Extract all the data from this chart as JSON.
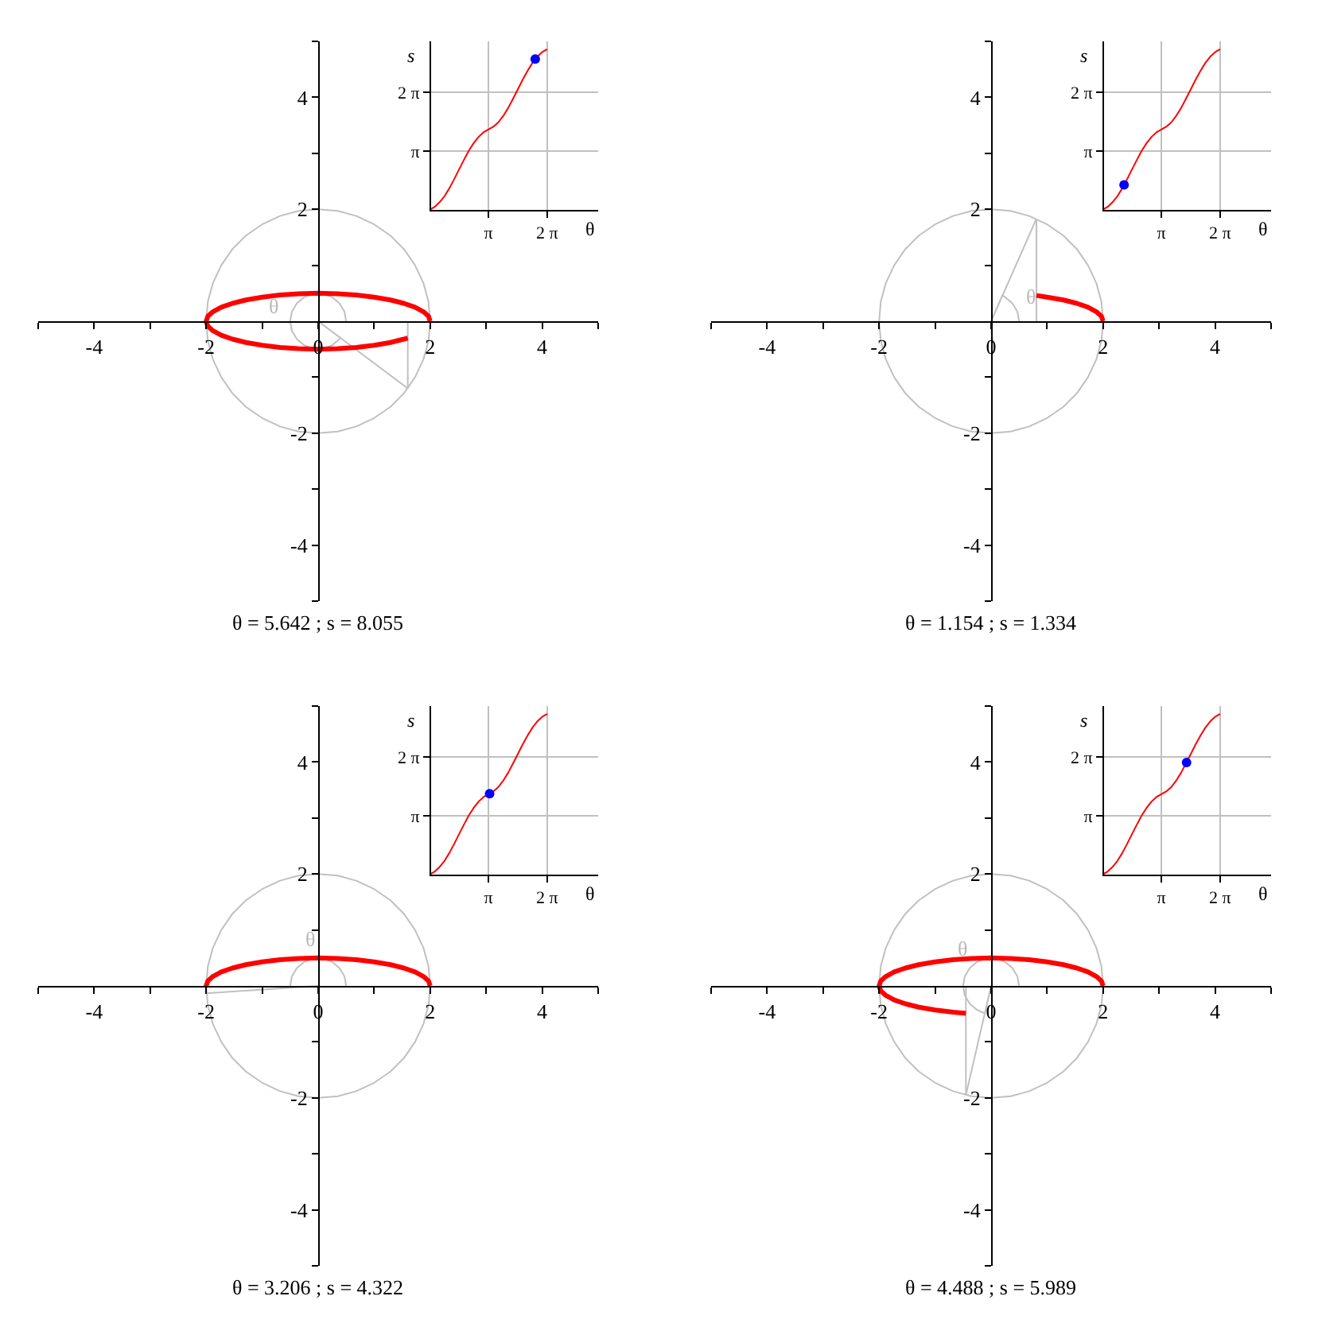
{
  "chart_data": [
    {
      "type": "line",
      "series": [
        {
          "color": "#c0c0c0",
          "x": [
            2,
            1.97,
            1.88,
            1.73,
            1.53,
            1.29,
            1,
            0.68,
            0.35,
            0,
            -0.35,
            -0.68,
            -1,
            -1.29,
            -1.53,
            -1.73,
            -1.88,
            -1.97,
            -2,
            -1.97,
            -1.88,
            -1.73,
            -1.53,
            -1.29,
            -1,
            -0.68,
            -0.35,
            0,
            0.35,
            0.68,
            1,
            1.29,
            1.53,
            1.73,
            1.88,
            1.97,
            2
          ],
          "values": [
            0,
            0.35,
            0.68,
            1,
            1.29,
            1.53,
            1.73,
            1.88,
            1.97,
            2,
            1.97,
            1.88,
            1.73,
            1.53,
            1.29,
            1,
            0.68,
            0.35,
            0,
            -0.35,
            -0.68,
            -1,
            -1.29,
            -1.53,
            -1.73,
            -1.88,
            -1.97,
            -2,
            -1.97,
            -1.88,
            -1.73,
            -1.53,
            -1.29,
            -1,
            -0.68,
            -0.35,
            -0.03
          ]
        },
        {
          "color": "#c0c0c0",
          "x": [
            0.5,
            0.47,
            0.38,
            0.25,
            0.09,
            -0.09,
            -0.25,
            -0.38,
            -0.47,
            -0.5,
            -0.47,
            -0.38,
            -0.25,
            -0.09,
            0.09,
            0.25,
            0.38,
            0.4,
            0,
            1.6
          ],
          "values": [
            0,
            0.17,
            0.32,
            0.43,
            0.49,
            0.49,
            0.43,
            0.32,
            0.17,
            0,
            -0.17,
            -0.32,
            -0.43,
            -0.49,
            -0.49,
            -0.43,
            -0.32,
            -0.3,
            0,
            -1.2
          ]
        },
        {
          "color": "#c0c0c0",
          "x": [
            1.6,
            1.6
          ],
          "values": [
            -1.2,
            0
          ]
        },
        {
          "color": "#ff0000",
          "x": [
            2,
            1.97,
            1.88,
            1.73,
            1.53,
            1.29,
            1,
            0.68,
            0.35,
            0,
            -0.35,
            -0.68,
            -1,
            -1.29,
            -1.53,
            -1.73,
            -1.88,
            -1.97,
            -2,
            -1.97,
            -1.88,
            -1.73,
            -1.53,
            -1.29,
            -1,
            -0.68,
            -0.35,
            0,
            0.35,
            0.68,
            1,
            1.29,
            1.53,
            1.6
          ],
          "values": [
            0,
            0.09,
            0.17,
            0.25,
            0.32,
            0.38,
            0.43,
            0.47,
            0.49,
            0.5,
            0.49,
            0.47,
            0.43,
            0.38,
            0.32,
            0.25,
            0.17,
            0.09,
            0,
            -0.09,
            -0.17,
            -0.25,
            -0.32,
            -0.38,
            -0.43,
            -0.47,
            -0.49,
            -0.5,
            -0.49,
            -0.47,
            -0.43,
            -0.38,
            -0.32,
            -0.3
          ]
        }
      ],
      "xlim": [
        -5,
        5
      ],
      "ylim": [
        -5,
        5
      ],
      "xticks": [
        {
          "value": -5,
          "label": null
        },
        -4,
        {
          "value": -3,
          "label": null
        },
        -2,
        {
          "value": -1,
          "label": null
        },
        0,
        {
          "value": 1,
          "label": null
        },
        2,
        {
          "value": 3,
          "label": null
        },
        4,
        {
          "value": 5,
          "label": null
        }
      ],
      "yticks": [
        {
          "value": -5,
          "label": null
        },
        -4,
        {
          "value": -3,
          "label": null
        },
        -2,
        {
          "value": -1,
          "label": null
        },
        {
          "value": 1,
          "label": null
        },
        2,
        {
          "value": 3,
          "label": null
        },
        4,
        {
          "value": 5,
          "label": null
        }
      ],
      "annotations": [
        {
          "text": "θ",
          "x": -0.48,
          "y": 0.16
        },
        "θ = 5.642 ; s = 8.055"
      ]
    },
    {
      "type": "line",
      "series": [
        {
          "color": "#ff0000",
          "x": [
            0,
            0.26,
            0.52,
            0.79,
            1.05,
            1.31,
            1.57,
            1.83,
            2.09,
            2.36,
            2.62,
            2.88,
            3.14,
            3.4,
            3.67,
            3.93,
            4.19,
            4.45,
            4.71,
            4.97,
            5.24,
            5.5,
            5.76,
            6.02,
            6.28
          ],
          "values": [
            0,
            0.15,
            0.39,
            0.72,
            1.14,
            1.63,
            2.15,
            2.66,
            3.15,
            3.57,
            3.9,
            4.14,
            4.29,
            4.44,
            4.67,
            5.01,
            5.43,
            5.92,
            6.43,
            6.95,
            7.44,
            7.86,
            8.19,
            8.43,
            8.58
          ]
        },
        {
          "type": "scatter",
          "color": "#0000ff",
          "marker": "circle",
          "x": [
            5.642
          ],
          "values": [
            8.055
          ]
        }
      ],
      "xlim": [
        0,
        9
      ],
      "ylim": [
        0,
        9
      ],
      "xticks": [
        {
          "value": 3.14,
          "label": "π"
        },
        {
          "value": 6.28,
          "label": "2 π"
        }
      ],
      "yticks": [
        {
          "value": 3.14,
          "label": "π"
        },
        {
          "value": 6.28,
          "label": "2 π"
        }
      ],
      "xlabel": "θ",
      "ylabel": "s",
      "grid": true
    },
    {
      "type": "line",
      "series": [
        {
          "color": "#c0c0c0",
          "x": [
            2,
            1.97,
            1.88,
            1.73,
            1.53,
            1.29,
            1,
            0.68,
            0.35,
            0,
            -0.35,
            -0.68,
            -1,
            -1.29,
            -1.53,
            -1.73,
            -1.88,
            -1.97,
            -2,
            -1.97,
            -1.88,
            -1.73,
            -1.53,
            -1.29,
            -1,
            -0.68,
            -0.35,
            0,
            0.35,
            0.68,
            1,
            1.29,
            1.53,
            1.73,
            1.88,
            1.97,
            2
          ],
          "values": [
            0,
            0.35,
            0.68,
            1,
            1.29,
            1.53,
            1.73,
            1.88,
            1.97,
            2,
            1.97,
            1.88,
            1.73,
            1.53,
            1.29,
            1,
            0.68,
            0.35,
            0,
            -0.35,
            -0.68,
            -1,
            -1.29,
            -1.53,
            -1.73,
            -1.88,
            -1.97,
            -2,
            -1.97,
            -1.88,
            -1.73,
            -1.53,
            -1.29,
            -1,
            -0.68,
            -0.35,
            -0.03
          ]
        },
        {
          "color": "#c0c0c0",
          "x": [
            0.5,
            0.47,
            0.38,
            0.25,
            0.2,
            0,
            0.81
          ],
          "values": [
            0,
            0.17,
            0.32,
            0.43,
            0.46,
            0,
            1.83
          ]
        },
        {
          "color": "#c0c0c0",
          "x": [
            0.81,
            0.81
          ],
          "values": [
            1.83,
            0
          ]
        },
        {
          "color": "#ff0000",
          "x": [
            2,
            1.97,
            1.88,
            1.73,
            1.53,
            1.29,
            1,
            0.81
          ],
          "values": [
            0,
            0.09,
            0.17,
            0.25,
            0.32,
            0.38,
            0.43,
            0.46
          ]
        }
      ],
      "xlim": [
        -5,
        5
      ],
      "ylim": [
        -5,
        5
      ],
      "xticks": [
        {
          "value": -5,
          "label": null
        },
        -4,
        {
          "value": -3,
          "label": null
        },
        -2,
        {
          "value": -1,
          "label": null
        },
        0,
        {
          "value": 1,
          "label": null
        },
        2,
        {
          "value": 3,
          "label": null
        },
        4,
        {
          "value": 5,
          "label": null
        }
      ],
      "yticks": [
        {
          "value": -5,
          "label": null
        },
        -4,
        {
          "value": -3,
          "label": null
        },
        -2,
        {
          "value": -1,
          "label": null
        },
        {
          "value": 1,
          "label": null
        },
        2,
        {
          "value": 3,
          "label": null
        },
        4,
        {
          "value": 5,
          "label": null
        }
      ],
      "annotations": [
        {
          "text": "θ",
          "x": 0.42,
          "y": 0.27
        },
        "θ = 1.154 ; s = 1.334"
      ]
    },
    {
      "type": "line",
      "series": [
        {
          "color": "#ff0000",
          "x": [
            0,
            0.26,
            0.52,
            0.79,
            1.05,
            1.31,
            1.57,
            1.83,
            2.09,
            2.36,
            2.62,
            2.88,
            3.14,
            3.4,
            3.67,
            3.93,
            4.19,
            4.45,
            4.71,
            4.97,
            5.24,
            5.5,
            5.76,
            6.02,
            6.28
          ],
          "values": [
            0,
            0.15,
            0.39,
            0.72,
            1.14,
            1.63,
            2.15,
            2.66,
            3.15,
            3.57,
            3.9,
            4.14,
            4.29,
            4.44,
            4.67,
            5.01,
            5.43,
            5.92,
            6.43,
            6.95,
            7.44,
            7.86,
            8.19,
            8.43,
            8.58
          ]
        },
        {
          "type": "scatter",
          "color": "#0000ff",
          "marker": "circle",
          "x": [
            1.154
          ],
          "values": [
            1.334
          ]
        }
      ],
      "xlim": [
        0,
        9
      ],
      "ylim": [
        0,
        9
      ],
      "xticks": [
        {
          "value": 3.14,
          "label": "π"
        },
        {
          "value": 6.28,
          "label": "2 π"
        }
      ],
      "yticks": [
        {
          "value": 3.14,
          "label": "π"
        },
        {
          "value": 6.28,
          "label": "2 π"
        }
      ],
      "xlabel": "θ",
      "ylabel": "s",
      "grid": true
    },
    {
      "type": "line",
      "series": [
        {
          "color": "#c0c0c0",
          "x": [
            2,
            1.97,
            1.88,
            1.73,
            1.53,
            1.29,
            1,
            0.68,
            0.35,
            0,
            -0.35,
            -0.68,
            -1,
            -1.29,
            -1.53,
            -1.73,
            -1.88,
            -1.97,
            -2,
            -1.97,
            -1.88,
            -1.73,
            -1.53,
            -1.29,
            -1,
            -0.68,
            -0.35,
            0,
            0.35,
            0.68,
            1,
            1.29,
            1.53,
            1.73,
            1.88,
            1.97,
            2
          ],
          "values": [
            0,
            0.35,
            0.68,
            1,
            1.29,
            1.53,
            1.73,
            1.88,
            1.97,
            2,
            1.97,
            1.88,
            1.73,
            1.53,
            1.29,
            1,
            0.68,
            0.35,
            0,
            -0.35,
            -0.68,
            -1,
            -1.29,
            -1.53,
            -1.73,
            -1.88,
            -1.97,
            -2,
            -1.97,
            -1.88,
            -1.73,
            -1.53,
            -1.29,
            -1,
            -0.68,
            -0.35,
            -0.03
          ]
        },
        {
          "color": "#c0c0c0",
          "x": [
            0.5,
            0.47,
            0.38,
            0.25,
            0.09,
            -0.09,
            -0.25,
            -0.38,
            -0.47,
            -0.5,
            -0.5,
            0,
            -2
          ],
          "values": [
            0,
            0.17,
            0.32,
            0.43,
            0.49,
            0.49,
            0.43,
            0.32,
            0.17,
            0,
            -0.03,
            0,
            -0.13
          ]
        },
        {
          "color": "#ff0000",
          "x": [
            2,
            1.97,
            1.88,
            1.73,
            1.53,
            1.29,
            1,
            0.68,
            0.35,
            0,
            -0.35,
            -0.68,
            -1,
            -1.29,
            -1.53,
            -1.73,
            -1.88,
            -1.97,
            -2,
            -2
          ],
          "values": [
            0,
            0.09,
            0.17,
            0.25,
            0.32,
            0.38,
            0.43,
            0.47,
            0.49,
            0.5,
            0.49,
            0.47,
            0.43,
            0.38,
            0.32,
            0.25,
            0.17,
            0.09,
            0,
            -0.03
          ]
        }
      ],
      "xlim": [
        -5,
        5
      ],
      "ylim": [
        -5,
        5
      ],
      "xticks": [
        {
          "value": -5,
          "label": null
        },
        -4,
        {
          "value": -3,
          "label": null
        },
        -2,
        {
          "value": -1,
          "label": null
        },
        0,
        {
          "value": 1,
          "label": null
        },
        2,
        {
          "value": 3,
          "label": null
        },
        4,
        {
          "value": 5,
          "label": null
        }
      ],
      "yticks": [
        {
          "value": -5,
          "label": null
        },
        -4,
        {
          "value": -3,
          "label": null
        },
        -2,
        {
          "value": -1,
          "label": null
        },
        {
          "value": 1,
          "label": null
        },
        2,
        {
          "value": 3,
          "label": null
        },
        4,
        {
          "value": 5,
          "label": null
        }
      ],
      "annotations": [
        {
          "text": "θ",
          "x": -0.09,
          "y": 0.49
        },
        "θ = 3.206 ; s = 4.322"
      ]
    },
    {
      "type": "line",
      "series": [
        {
          "color": "#ff0000",
          "x": [
            0,
            0.26,
            0.52,
            0.79,
            1.05,
            1.31,
            1.57,
            1.83,
            2.09,
            2.36,
            2.62,
            2.88,
            3.14,
            3.4,
            3.67,
            3.93,
            4.19,
            4.45,
            4.71,
            4.97,
            5.24,
            5.5,
            5.76,
            6.02,
            6.28
          ],
          "values": [
            0,
            0.15,
            0.39,
            0.72,
            1.14,
            1.63,
            2.15,
            2.66,
            3.15,
            3.57,
            3.9,
            4.14,
            4.29,
            4.44,
            4.67,
            5.01,
            5.43,
            5.92,
            6.43,
            6.95,
            7.44,
            7.86,
            8.19,
            8.43,
            8.58
          ]
        },
        {
          "type": "scatter",
          "color": "#0000ff",
          "marker": "circle",
          "x": [
            3.206
          ],
          "values": [
            4.322
          ]
        }
      ],
      "xlim": [
        0,
        9
      ],
      "ylim": [
        0,
        9
      ],
      "xticks": [
        {
          "value": 3.14,
          "label": "π"
        },
        {
          "value": 6.28,
          "label": "2 π"
        }
      ],
      "yticks": [
        {
          "value": 3.14,
          "label": "π"
        },
        {
          "value": 6.28,
          "label": "2 π"
        }
      ],
      "xlabel": "θ",
      "ylabel": "s",
      "grid": true
    },
    {
      "type": "line",
      "series": [
        {
          "color": "#c0c0c0",
          "x": [
            2,
            1.97,
            1.88,
            1.73,
            1.53,
            1.29,
            1,
            0.68,
            0.35,
            0,
            -0.35,
            -0.68,
            -1,
            -1.29,
            -1.53,
            -1.73,
            -1.88,
            -1.97,
            -2,
            -1.97,
            -1.88,
            -1.73,
            -1.53,
            -1.29,
            -1,
            -0.68,
            -0.35,
            0,
            0.35,
            0.68,
            1,
            1.29,
            1.53,
            1.73,
            1.88,
            1.97,
            2
          ],
          "values": [
            0,
            0.35,
            0.68,
            1,
            1.29,
            1.53,
            1.73,
            1.88,
            1.97,
            2,
            1.97,
            1.88,
            1.73,
            1.53,
            1.29,
            1,
            0.68,
            0.35,
            0,
            -0.35,
            -0.68,
            -1,
            -1.29,
            -1.53,
            -1.73,
            -1.88,
            -1.97,
            -2,
            -1.97,
            -1.88,
            -1.73,
            -1.53,
            -1.29,
            -1,
            -0.68,
            -0.35,
            -0.03
          ]
        },
        {
          "color": "#c0c0c0",
          "x": [
            0.5,
            0.47,
            0.38,
            0.25,
            0.09,
            -0.09,
            -0.25,
            -0.38,
            -0.47,
            -0.5,
            -0.47,
            -0.38,
            -0.25,
            -0.11,
            0,
            -0.45
          ],
          "values": [
            0,
            0.17,
            0.32,
            0.43,
            0.49,
            0.49,
            0.43,
            0.32,
            0.17,
            0,
            -0.17,
            -0.32,
            -0.43,
            -0.49,
            0,
            -1.95
          ]
        },
        {
          "color": "#c0c0c0",
          "x": [
            -0.45,
            -0.45
          ],
          "values": [
            -1.95,
            0
          ]
        },
        {
          "color": "#ff0000",
          "x": [
            2,
            1.97,
            1.88,
            1.73,
            1.53,
            1.29,
            1,
            0.68,
            0.35,
            0,
            -0.35,
            -0.68,
            -1,
            -1.29,
            -1.53,
            -1.73,
            -1.88,
            -1.97,
            -2,
            -1.97,
            -1.88,
            -1.73,
            -1.53,
            -1.29,
            -1,
            -0.68,
            -0.45
          ],
          "values": [
            0,
            0.09,
            0.17,
            0.25,
            0.32,
            0.38,
            0.43,
            0.47,
            0.49,
            0.5,
            0.49,
            0.47,
            0.43,
            0.38,
            0.32,
            0.25,
            0.17,
            0.09,
            0,
            -0.09,
            -0.17,
            -0.25,
            -0.32,
            -0.38,
            -0.43,
            -0.47,
            -0.49
          ]
        }
      ],
      "xlim": [
        -5,
        5
      ],
      "ylim": [
        -5,
        5
      ],
      "xticks": [
        {
          "value": -5,
          "label": null
        },
        -4,
        {
          "value": -3,
          "label": null
        },
        -2,
        {
          "value": -1,
          "label": null
        },
        0,
        {
          "value": 1,
          "label": null
        },
        2,
        {
          "value": 3,
          "label": null
        },
        4,
        {
          "value": 5,
          "label": null
        }
      ],
      "yticks": [
        {
          "value": -5,
          "label": null
        },
        -4,
        {
          "value": -3,
          "label": null
        },
        -2,
        {
          "value": -1,
          "label": null
        },
        {
          "value": 1,
          "label": null
        },
        2,
        {
          "value": 3,
          "label": null
        },
        4,
        {
          "value": 5,
          "label": null
        }
      ],
      "annotations": [
        {
          "text": "θ",
          "x": -0.31,
          "y": 0.39
        },
        "θ = 4.488 ; s = 5.989"
      ]
    },
    {
      "type": "line",
      "series": [
        {
          "color": "#ff0000",
          "x": [
            0,
            0.26,
            0.52,
            0.79,
            1.05,
            1.31,
            1.57,
            1.83,
            2.09,
            2.36,
            2.62,
            2.88,
            3.14,
            3.4,
            3.67,
            3.93,
            4.19,
            4.45,
            4.71,
            4.97,
            5.24,
            5.5,
            5.76,
            6.02,
            6.28
          ],
          "values": [
            0,
            0.15,
            0.39,
            0.72,
            1.14,
            1.63,
            2.15,
            2.66,
            3.15,
            3.57,
            3.9,
            4.14,
            4.29,
            4.44,
            4.67,
            5.01,
            5.43,
            5.92,
            6.43,
            6.95,
            7.44,
            7.86,
            8.19,
            8.43,
            8.58
          ]
        },
        {
          "type": "scatter",
          "color": "#0000ff",
          "marker": "circle",
          "x": [
            4.488
          ],
          "values": [
            5.989
          ]
        }
      ],
      "xlim": [
        0,
        9
      ],
      "ylim": [
        0,
        9
      ],
      "xticks": [
        {
          "value": 3.14,
          "label": "π"
        },
        {
          "value": 6.28,
          "label": "2 π"
        }
      ],
      "yticks": [
        {
          "value": 3.14,
          "label": "π"
        },
        {
          "value": 6.28,
          "label": "2 π"
        }
      ],
      "xlabel": "θ",
      "ylabel": "s",
      "grid": true
    }
  ]
}
